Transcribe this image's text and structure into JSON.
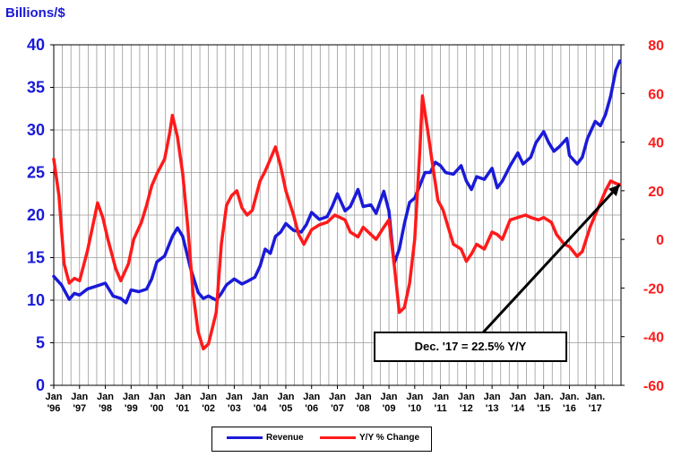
{
  "chart_data": {
    "type": "line",
    "y_label": "Billions/$",
    "y_left_ticks": [
      "0",
      "5",
      "10",
      "15",
      "20",
      "25",
      "30",
      "35",
      "40"
    ],
    "y_left_range": [
      0,
      40
    ],
    "y_right_ticks": [
      "-60",
      "-40",
      "-20",
      "0",
      "20",
      "40",
      "60",
      "80"
    ],
    "y_right_range": [
      -60,
      80
    ],
    "x_ticks": [
      {
        "l1": "Jan",
        "l2": "'96"
      },
      {
        "l1": "Jan",
        "l2": "'97"
      },
      {
        "l1": "Jan",
        "l2": "'98"
      },
      {
        "l1": "Jan",
        "l2": "'99"
      },
      {
        "l1": "Jan",
        "l2": "'00"
      },
      {
        "l1": "Jan",
        "l2": "'01"
      },
      {
        "l1": "Jan",
        "l2": "'02"
      },
      {
        "l1": "Jan",
        "l2": "'03"
      },
      {
        "l1": "Jan",
        "l2": "'04"
      },
      {
        "l1": "Jan",
        "l2": "'05"
      },
      {
        "l1": "Jan",
        "l2": "'06"
      },
      {
        "l1": "Jan",
        "l2": "'07"
      },
      {
        "l1": "Jan",
        "l2": "'08"
      },
      {
        "l1": "Jan",
        "l2": "'09"
      },
      {
        "l1": "Jan",
        "l2": "'10"
      },
      {
        "l1": "Jan",
        "l2": "'11"
      },
      {
        "l1": "Jan",
        "l2": "'12"
      },
      {
        "l1": "Jan",
        "l2": "'13"
      },
      {
        "l1": "Jan",
        "l2": "'14"
      },
      {
        "l1": "Jan.",
        "l2": "'15"
      },
      {
        "l1": "Jan.",
        "l2": "'16"
      },
      {
        "l1": "Jan.",
        "l2": "'17"
      }
    ],
    "x_range": [
      1996,
      2018
    ],
    "series": [
      {
        "name": "Revenue",
        "axis": "left",
        "color": "#1a1ad9",
        "points": [
          [
            1996.0,
            12.8
          ],
          [
            1996.3,
            11.8
          ],
          [
            1996.6,
            10.1
          ],
          [
            1996.8,
            10.8
          ],
          [
            1997.0,
            10.6
          ],
          [
            1997.3,
            11.3
          ],
          [
            1997.6,
            11.6
          ],
          [
            1998.0,
            12.0
          ],
          [
            1998.3,
            10.5
          ],
          [
            1998.6,
            10.2
          ],
          [
            1998.8,
            9.7
          ],
          [
            1999.0,
            11.2
          ],
          [
            1999.3,
            11.0
          ],
          [
            1999.6,
            11.3
          ],
          [
            1999.8,
            12.5
          ],
          [
            2000.0,
            14.5
          ],
          [
            2000.3,
            15.2
          ],
          [
            2000.6,
            17.5
          ],
          [
            2000.8,
            18.5
          ],
          [
            2001.0,
            17.5
          ],
          [
            2001.3,
            13.8
          ],
          [
            2001.6,
            10.9
          ],
          [
            2001.8,
            10.2
          ],
          [
            2002.0,
            10.5
          ],
          [
            2002.3,
            10.0
          ],
          [
            2002.5,
            10.8
          ],
          [
            2002.7,
            11.8
          ],
          [
            2003.0,
            12.5
          ],
          [
            2003.3,
            11.9
          ],
          [
            2003.5,
            12.2
          ],
          [
            2003.8,
            12.7
          ],
          [
            2004.0,
            14.0
          ],
          [
            2004.2,
            16.0
          ],
          [
            2004.4,
            15.5
          ],
          [
            2004.6,
            17.5
          ],
          [
            2004.8,
            18.0
          ],
          [
            2005.0,
            19.0
          ],
          [
            2005.3,
            18.2
          ],
          [
            2005.6,
            18.0
          ],
          [
            2005.8,
            18.9
          ],
          [
            2006.0,
            20.3
          ],
          [
            2006.3,
            19.5
          ],
          [
            2006.6,
            19.8
          ],
          [
            2006.8,
            21.0
          ],
          [
            2007.0,
            22.5
          ],
          [
            2007.3,
            20.5
          ],
          [
            2007.5,
            21.0
          ],
          [
            2007.8,
            23.0
          ],
          [
            2008.0,
            21.0
          ],
          [
            2008.3,
            21.2
          ],
          [
            2008.5,
            20.2
          ],
          [
            2008.8,
            22.8
          ],
          [
            2009.0,
            20.5
          ],
          [
            2009.2,
            14.3
          ],
          [
            2009.4,
            16.0
          ],
          [
            2009.6,
            19.0
          ],
          [
            2009.8,
            21.5
          ],
          [
            2010.0,
            22.0
          ],
          [
            2010.2,
            23.5
          ],
          [
            2010.4,
            25.0
          ],
          [
            2010.6,
            25.0
          ],
          [
            2010.8,
            26.2
          ],
          [
            2011.0,
            25.8
          ],
          [
            2011.2,
            25.0
          ],
          [
            2011.5,
            24.8
          ],
          [
            2011.8,
            25.8
          ],
          [
            2012.0,
            24.0
          ],
          [
            2012.2,
            23.0
          ],
          [
            2012.4,
            24.5
          ],
          [
            2012.7,
            24.2
          ],
          [
            2013.0,
            25.5
          ],
          [
            2013.2,
            23.2
          ],
          [
            2013.4,
            24.0
          ],
          [
            2013.7,
            25.8
          ],
          [
            2014.0,
            27.3
          ],
          [
            2014.2,
            26.0
          ],
          [
            2014.5,
            26.8
          ],
          [
            2014.7,
            28.5
          ],
          [
            2015.0,
            29.8
          ],
          [
            2015.2,
            28.5
          ],
          [
            2015.4,
            27.5
          ],
          [
            2015.6,
            28.0
          ],
          [
            2015.9,
            29.0
          ],
          [
            2016.0,
            27.0
          ],
          [
            2016.3,
            26.0
          ],
          [
            2016.5,
            26.8
          ],
          [
            2016.7,
            29.0
          ],
          [
            2017.0,
            31.0
          ],
          [
            2017.2,
            30.5
          ],
          [
            2017.4,
            31.8
          ],
          [
            2017.6,
            34.0
          ],
          [
            2017.8,
            37.0
          ],
          [
            2017.95,
            38.1
          ]
        ]
      },
      {
        "name": "Y/Y % Change",
        "axis": "right",
        "color": "#ff1a1a",
        "points": [
          [
            1996.0,
            33
          ],
          [
            1996.2,
            18
          ],
          [
            1996.4,
            -10
          ],
          [
            1996.6,
            -18
          ],
          [
            1996.8,
            -16
          ],
          [
            1997.0,
            -17
          ],
          [
            1997.3,
            -5
          ],
          [
            1997.5,
            5
          ],
          [
            1997.7,
            15
          ],
          [
            1997.9,
            9
          ],
          [
            1998.1,
            0
          ],
          [
            1998.4,
            -12
          ],
          [
            1998.6,
            -17
          ],
          [
            1998.9,
            -10
          ],
          [
            1999.1,
            0
          ],
          [
            1999.4,
            7
          ],
          [
            1999.6,
            14
          ],
          [
            1999.8,
            22
          ],
          [
            2000.0,
            27
          ],
          [
            2000.3,
            33
          ],
          [
            2000.5,
            44
          ],
          [
            2000.6,
            51
          ],
          [
            2000.8,
            42
          ],
          [
            2001.0,
            27
          ],
          [
            2001.2,
            5
          ],
          [
            2001.4,
            -22
          ],
          [
            2001.6,
            -38
          ],
          [
            2001.8,
            -45
          ],
          [
            2002.0,
            -43
          ],
          [
            2002.3,
            -30
          ],
          [
            2002.5,
            -2
          ],
          [
            2002.7,
            14
          ],
          [
            2002.9,
            18
          ],
          [
            2003.1,
            20
          ],
          [
            2003.3,
            13
          ],
          [
            2003.5,
            10
          ],
          [
            2003.7,
            12
          ],
          [
            2004.0,
            24
          ],
          [
            2004.2,
            28
          ],
          [
            2004.4,
            33
          ],
          [
            2004.6,
            38
          ],
          [
            2004.8,
            30
          ],
          [
            2005.0,
            20
          ],
          [
            2005.3,
            10
          ],
          [
            2005.5,
            2
          ],
          [
            2005.7,
            -2
          ],
          [
            2006.0,
            4
          ],
          [
            2006.3,
            6
          ],
          [
            2006.6,
            7
          ],
          [
            2006.9,
            10
          ],
          [
            2007.1,
            9
          ],
          [
            2007.3,
            8
          ],
          [
            2007.5,
            3
          ],
          [
            2007.8,
            1
          ],
          [
            2008.0,
            5
          ],
          [
            2008.3,
            2
          ],
          [
            2008.5,
            0
          ],
          [
            2008.8,
            5
          ],
          [
            2009.0,
            8
          ],
          [
            2009.2,
            -10
          ],
          [
            2009.4,
            -30
          ],
          [
            2009.6,
            -28
          ],
          [
            2009.8,
            -18
          ],
          [
            2010.0,
            0
          ],
          [
            2010.2,
            37
          ],
          [
            2010.3,
            59
          ],
          [
            2010.5,
            45
          ],
          [
            2010.7,
            30
          ],
          [
            2010.9,
            16
          ],
          [
            2011.1,
            12
          ],
          [
            2011.3,
            5
          ],
          [
            2011.5,
            -2
          ],
          [
            2011.8,
            -4
          ],
          [
            2012.0,
            -9
          ],
          [
            2012.2,
            -6
          ],
          [
            2012.4,
            -2
          ],
          [
            2012.7,
            -4
          ],
          [
            2013.0,
            3
          ],
          [
            2013.2,
            2
          ],
          [
            2013.4,
            0
          ],
          [
            2013.7,
            8
          ],
          [
            2014.0,
            9
          ],
          [
            2014.3,
            10
          ],
          [
            2014.5,
            9
          ],
          [
            2014.8,
            8
          ],
          [
            2015.0,
            9
          ],
          [
            2015.3,
            7
          ],
          [
            2015.5,
            2
          ],
          [
            2015.8,
            -2
          ],
          [
            2016.0,
            -3
          ],
          [
            2016.3,
            -7
          ],
          [
            2016.5,
            -5
          ],
          [
            2016.8,
            5
          ],
          [
            2017.0,
            10
          ],
          [
            2017.2,
            15
          ],
          [
            2017.4,
            20
          ],
          [
            2017.6,
            24
          ],
          [
            2017.8,
            23
          ],
          [
            2017.95,
            22.5
          ]
        ]
      }
    ],
    "annotation": {
      "text": "Dec. '17 = 22.5% Y/Y",
      "arrow_from": [
        2012.5,
        -40
      ],
      "arrow_to": [
        2017.95,
        22.5
      ]
    },
    "legend": {
      "position": "bottom",
      "items": [
        "Revenue",
        "Y/Y % Change"
      ]
    }
  }
}
